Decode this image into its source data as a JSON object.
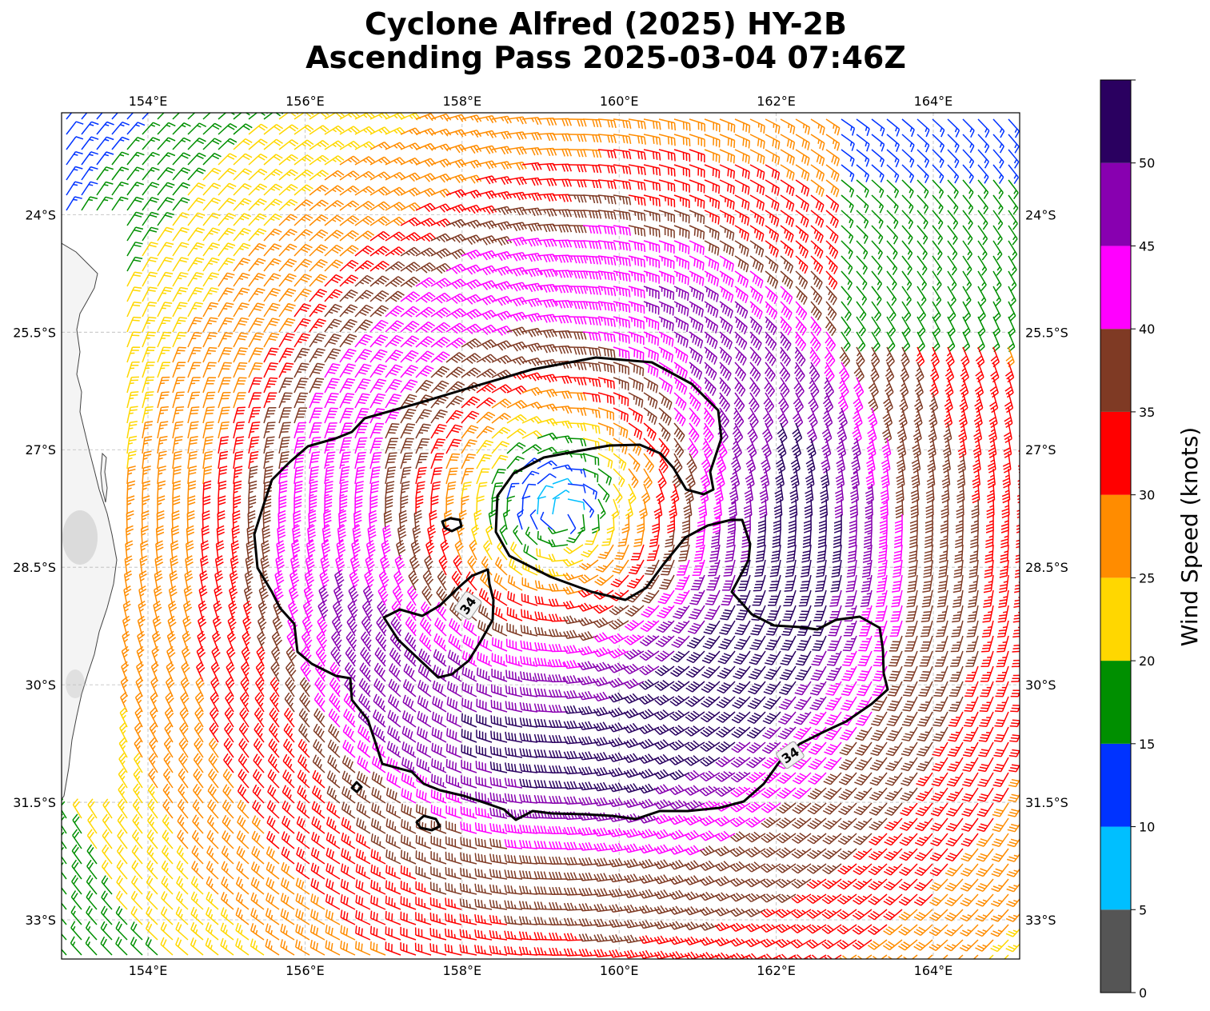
{
  "title": {
    "line1": "Cyclone Alfred (2025) HY-2B",
    "line2": "Ascending Pass 2025-03-04 07:46Z"
  },
  "map": {
    "extent": {
      "lon_min": 152.9,
      "lon_max": 165.1,
      "lat_min": -33.5,
      "lat_max": -22.7
    },
    "lon_ticks": [
      "154°E",
      "156°E",
      "158°E",
      "160°E",
      "162°E",
      "164°E"
    ],
    "lon_tick_values": [
      154,
      156,
      158,
      160,
      162,
      164
    ],
    "lat_ticks": [
      "24°S",
      "25.5°S",
      "27°S",
      "28.5°S",
      "30°S",
      "31.5°S",
      "33°S"
    ],
    "lat_tick_values": [
      -24,
      -25.5,
      -27,
      -28.5,
      -30,
      -31.5,
      -33
    ],
    "gridlines": true,
    "cyclone_center": {
      "lon": 159.3,
      "lat": -27.85
    },
    "contour_label": "34",
    "contour_value_knots": 34,
    "land_color": "#f4f4f4",
    "coastline_color": "#444444"
  },
  "colorbar": {
    "label": "Wind Speed (knots)",
    "tick_labels": [
      "0",
      "5",
      "10",
      "15",
      "20",
      "25",
      "30",
      "35",
      "40",
      "45",
      "50"
    ],
    "bins": [
      {
        "min": 0,
        "max": 5,
        "color": "#555555"
      },
      {
        "min": 5,
        "max": 10,
        "color": "#00bfff"
      },
      {
        "min": 10,
        "max": 15,
        "color": "#0033ff"
      },
      {
        "min": 15,
        "max": 20,
        "color": "#008f00"
      },
      {
        "min": 20,
        "max": 25,
        "color": "#ffd700"
      },
      {
        "min": 25,
        "max": 30,
        "color": "#ff8c00"
      },
      {
        "min": 30,
        "max": 35,
        "color": "#ff0000"
      },
      {
        "min": 35,
        "max": 40,
        "color": "#7f3a24"
      },
      {
        "min": 40,
        "max": 45,
        "color": "#ff00ff"
      },
      {
        "min": 45,
        "max": 50,
        "color": "#8800b0"
      },
      {
        "min": 50,
        "max": 55,
        "color": "#2a0060"
      }
    ]
  }
}
